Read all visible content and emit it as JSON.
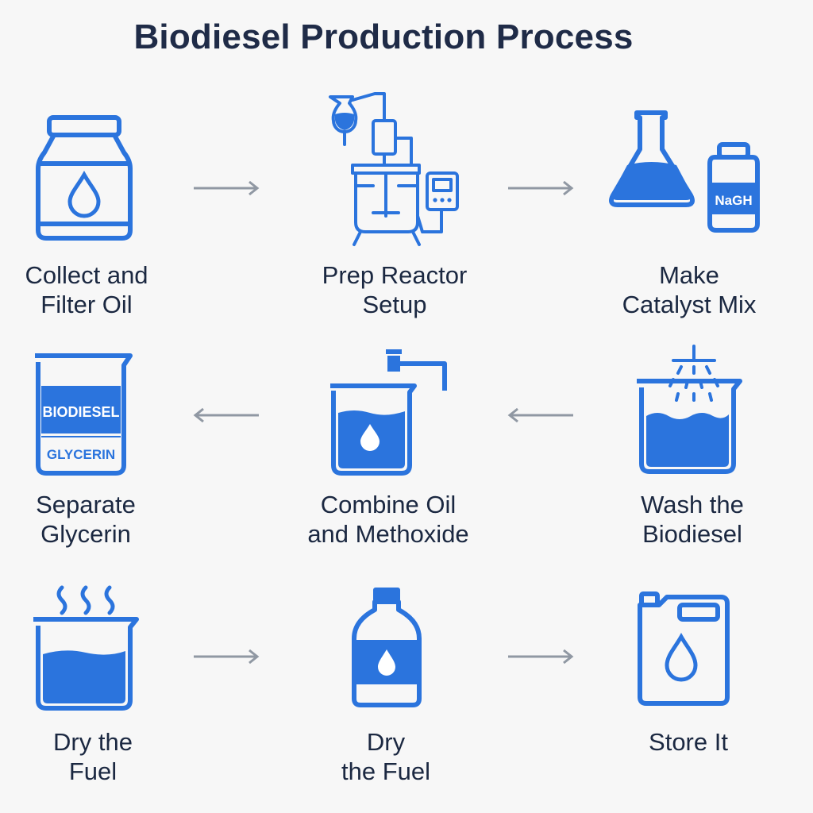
{
  "title": "Biodiesel Production Process",
  "colors": {
    "accent": "#2b74dd",
    "text": "#1b2841",
    "arrow": "#9098a3",
    "background": "#f7f7f7"
  },
  "steps": [
    {
      "line1": "Collect and",
      "line2": "Filter Oil",
      "icon": "oil-jar-icon"
    },
    {
      "line1": "Prep Reactor",
      "line2": "Setup",
      "icon": "reactor-icon"
    },
    {
      "line1": "Make",
      "line2": "Catalyst Mix",
      "icon": "catalyst-flask-icon",
      "bottle_text": "NaGH"
    },
    {
      "line1": "Separate",
      "line2": "Glycerin",
      "icon": "separation-beaker-icon",
      "upper_text": "BIODIESEL",
      "lower_text": "GLYCERIN"
    },
    {
      "line1": "Combine Oil",
      "line2": "and Methoxide",
      "icon": "mixing-beaker-icon"
    },
    {
      "line1": "Wash the",
      "line2": "Biodiesel",
      "icon": "wash-beaker-icon"
    },
    {
      "line1": "Dry the",
      "line2": "Fuel",
      "icon": "heated-beaker-icon"
    },
    {
      "line1": "Dry",
      "line2": "the Fuel",
      "icon": "fuel-bottle-icon"
    },
    {
      "line1": "Store It",
      "line2": "",
      "icon": "jerrycan-icon"
    }
  ],
  "arrows": [
    {
      "from": "Collect and Filter Oil",
      "to": "Prep Reactor Setup",
      "direction": "right"
    },
    {
      "from": "Prep Reactor Setup",
      "to": "Make Catalyst Mix",
      "direction": "right"
    },
    {
      "from": "Wash the Biodiesel",
      "to": "Combine Oil and Methoxide",
      "direction": "left"
    },
    {
      "from": "Combine Oil and Methoxide",
      "to": "Separate Glycerin",
      "direction": "left"
    },
    {
      "from": "Dry the Fuel",
      "to": "Dry the Fuel",
      "direction": "right"
    },
    {
      "from": "Dry the Fuel",
      "to": "Store It",
      "direction": "right"
    }
  ]
}
